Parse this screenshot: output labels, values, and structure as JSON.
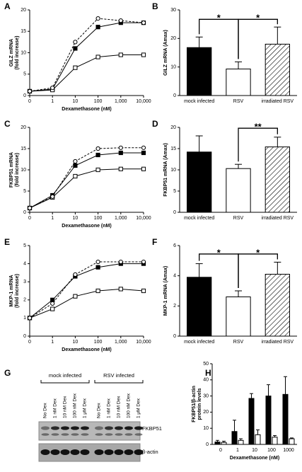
{
  "chart_data": [
    {
      "type": "line",
      "panel": "A",
      "ylabel": [
        "GILZ mRNA",
        "(fold increase)"
      ],
      "xlabel": "Dexamethasone (nM)",
      "categories": [
        "0",
        "1",
        "10",
        "100",
        "1,000",
        "10,000"
      ],
      "ylim": [
        0,
        20
      ],
      "yticks": [
        0,
        5,
        10,
        15,
        20
      ],
      "series": [
        {
          "color": "#000000",
          "marker": "square",
          "filled": true,
          "dashed": false,
          "values": [
            1,
            1.5,
            11,
            16,
            17,
            17
          ]
        },
        {
          "color": "#000000",
          "marker": "square",
          "filled": false,
          "dashed": false,
          "values": [
            1,
            1.3,
            6.5,
            9,
            9.5,
            9.5
          ]
        },
        {
          "color": "#000000",
          "marker": "circle",
          "filled": false,
          "dashed": true,
          "values": [
            1,
            1.8,
            12.5,
            18,
            17.5,
            17
          ]
        }
      ]
    },
    {
      "type": "bar",
      "panel": "B",
      "ylabel": [
        "GILZ mRNA (Amax)"
      ],
      "categories": [
        "mock infected",
        "RSV",
        "irradiated RSV"
      ],
      "values": [
        16.8,
        9.3,
        18
      ],
      "errors": [
        3.7,
        2.5,
        6
      ],
      "fills": [
        "#000000",
        "#ffffff",
        "#ffffff"
      ],
      "hatched": [
        false,
        false,
        true
      ],
      "ylim": [
        0,
        30
      ],
      "yticks": [
        0,
        10,
        20,
        30
      ],
      "annotations": [
        "*",
        "*"
      ]
    },
    {
      "type": "line",
      "panel": "C",
      "ylabel": [
        "FKBP51 mRNA",
        "(fold increase)"
      ],
      "xlabel": "Dexamethasone (nM)",
      "categories": [
        "0",
        "1",
        "10",
        "100",
        "1,000",
        "10,000"
      ],
      "ylim": [
        0,
        20
      ],
      "yticks": [
        0,
        5,
        10,
        15,
        20
      ],
      "series": [
        {
          "color": "#000000",
          "marker": "square",
          "filled": true,
          "dashed": false,
          "values": [
            1,
            4,
            11,
            13.5,
            14,
            14
          ]
        },
        {
          "color": "#000000",
          "marker": "square",
          "filled": false,
          "dashed": false,
          "values": [
            1,
            3.5,
            8.5,
            10,
            10.2,
            10.2
          ]
        },
        {
          "color": "#000000",
          "marker": "circle",
          "filled": false,
          "dashed": true,
          "values": [
            1,
            3.7,
            12,
            15,
            15.2,
            15.2
          ]
        }
      ]
    },
    {
      "type": "bar",
      "panel": "D",
      "ylabel": [
        "FKBP51 mRNA (Amax)"
      ],
      "categories": [
        "mock infected",
        "RSV",
        "irradiated RSV"
      ],
      "values": [
        14.2,
        10.3,
        15.4
      ],
      "errors": [
        3.8,
        1,
        2.3
      ],
      "fills": [
        "#000000",
        "#ffffff",
        "#ffffff"
      ],
      "hatched": [
        false,
        false,
        true
      ],
      "ylim": [
        0,
        20
      ],
      "yticks": [
        0,
        5,
        10,
        15,
        20
      ],
      "annotations": [
        "**"
      ]
    },
    {
      "type": "line",
      "panel": "E",
      "ylabel": [
        "MKP-1 mRNA",
        "(fold increase)"
      ],
      "xlabel": "Dexamethasone (nM)",
      "categories": [
        "0",
        "1",
        "10",
        "100",
        "1,000",
        "10,000"
      ],
      "ylim": [
        0,
        5
      ],
      "yticks": [
        0,
        1,
        2,
        3,
        4,
        5
      ],
      "series": [
        {
          "color": "#000000",
          "marker": "square",
          "filled": true,
          "dashed": false,
          "values": [
            1,
            2,
            3.3,
            3.8,
            4,
            4
          ]
        },
        {
          "color": "#000000",
          "marker": "square",
          "filled": false,
          "dashed": false,
          "values": [
            1,
            1.5,
            2.2,
            2.5,
            2.6,
            2.5
          ]
        },
        {
          "color": "#000000",
          "marker": "circle",
          "filled": false,
          "dashed": true,
          "values": [
            1,
            1.8,
            3.4,
            4.1,
            4.1,
            4.1
          ]
        }
      ]
    },
    {
      "type": "bar",
      "panel": "F",
      "ylabel": [
        "MKP-1 mRNA (Amax)"
      ],
      "categories": [
        "mock infected",
        "RSV",
        "irradiated RSV"
      ],
      "values": [
        3.9,
        2.6,
        4.1
      ],
      "errors": [
        0.9,
        0.4,
        0.8
      ],
      "fills": [
        "#000000",
        "#ffffff",
        "#ffffff"
      ],
      "hatched": [
        false,
        false,
        true
      ],
      "ylim": [
        0,
        6
      ],
      "yticks": [
        0,
        2,
        4,
        6
      ],
      "annotations": [
        "*",
        "*"
      ]
    },
    {
      "type": "blot",
      "panel": "G",
      "groups": [
        "mock infected",
        "RSV infected"
      ],
      "lanes": [
        "No Dex",
        "1 nM Dex",
        "10 nM Dex",
        "100 nM Dex",
        "1 μM Dex",
        "No Dex",
        "1 nM Dex",
        "10 nM Dex",
        "100 nM Dex",
        "1 μM Dex"
      ],
      "bands": [
        "FKBP51",
        "β-actin"
      ]
    },
    {
      "type": "groupedbar",
      "panel": "H",
      "ylabel": [
        "FKBP51/β-actin",
        "protein levels"
      ],
      "xlabel": "Dexamethasone (nM)",
      "categories": [
        "0",
        "1",
        "10",
        "100",
        "1000"
      ],
      "ylim": [
        0,
        50
      ],
      "yticks": [
        0,
        10,
        20,
        30,
        40,
        50
      ],
      "series": [
        {
          "color": "#000000",
          "values": [
            1.5,
            8,
            28.5,
            30,
            31
          ],
          "errors": [
            1,
            7,
            3,
            7,
            11
          ]
        },
        {
          "color": "#ffffff",
          "values": [
            1.2,
            2.5,
            6,
            4.5,
            3.5
          ],
          "errors": [
            0.8,
            1,
            3,
            1,
            0.5
          ]
        }
      ]
    }
  ]
}
